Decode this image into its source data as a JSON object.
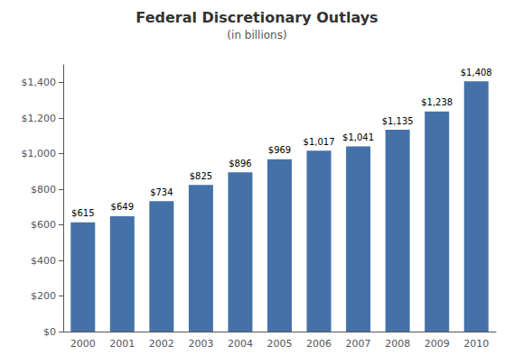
{
  "chart_data": {
    "type": "bar",
    "title": "Federal Discretionary Outlays",
    "subtitle": "(in billions)",
    "categories": [
      "2000",
      "2001",
      "2002",
      "2003",
      "2004",
      "2005",
      "2006",
      "2007",
      "2008",
      "2009",
      "2010"
    ],
    "values": [
      615,
      649,
      734,
      825,
      896,
      969,
      1017,
      1041,
      1135,
      1238,
      1408
    ],
    "value_labels": [
      "$615",
      "$649",
      "$734",
      "$825",
      "$896",
      "$969",
      "$1,017",
      "$1,041",
      "$1,135",
      "$1,238",
      "$1,408"
    ],
    "color": "#4472a8",
    "ylim": [
      0,
      1500
    ],
    "yticks": [
      {
        "value": 0,
        "label": "$0"
      },
      {
        "value": 200,
        "label": "$200"
      },
      {
        "value": 400,
        "label": "$400"
      },
      {
        "value": 600,
        "label": "$600"
      },
      {
        "value": 800,
        "label": "$800"
      },
      {
        "value": 1000,
        "label": "$1,000"
      },
      {
        "value": 1200,
        "label": "$1,200"
      },
      {
        "value": 1400,
        "label": "$1,400"
      }
    ],
    "grid": false,
    "data_labels": true
  }
}
